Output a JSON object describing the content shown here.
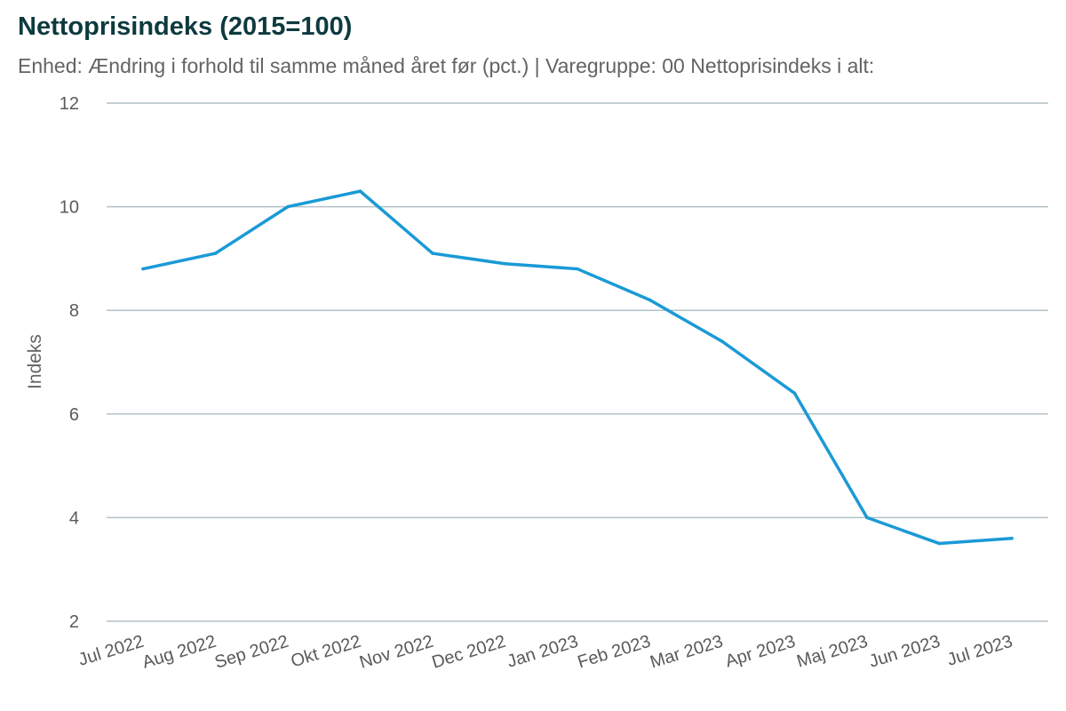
{
  "chart_data": {
    "type": "line",
    "title": "Nettoprisindeks (2015=100)",
    "subtitle": "Enhed: Ændring i forhold til samme måned året før (pct.) | Varegruppe: 00 Nettoprisindeks i alt:",
    "xlabel": "",
    "ylabel": "Indeks",
    "categories": [
      "Jul 2022",
      "Aug 2022",
      "Sep 2022",
      "Okt 2022",
      "Nov 2022",
      "Dec 2022",
      "Jan 2023",
      "Feb 2023",
      "Mar 2023",
      "Apr 2023",
      "Maj 2023",
      "Jun 2023",
      "Jul 2023"
    ],
    "series": [
      {
        "values": [
          8.8,
          9.1,
          10.0,
          10.3,
          9.1,
          8.9,
          8.8,
          8.2,
          7.4,
          6.4,
          4.0,
          3.5,
          3.6
        ],
        "color": "#1a9ad6"
      }
    ],
    "yticks": [
      2,
      4,
      6,
      8,
      10,
      12
    ],
    "ylim": [
      2,
      12
    ],
    "grid": true,
    "legend": "none",
    "gridColor": "#b3c1c6"
  }
}
